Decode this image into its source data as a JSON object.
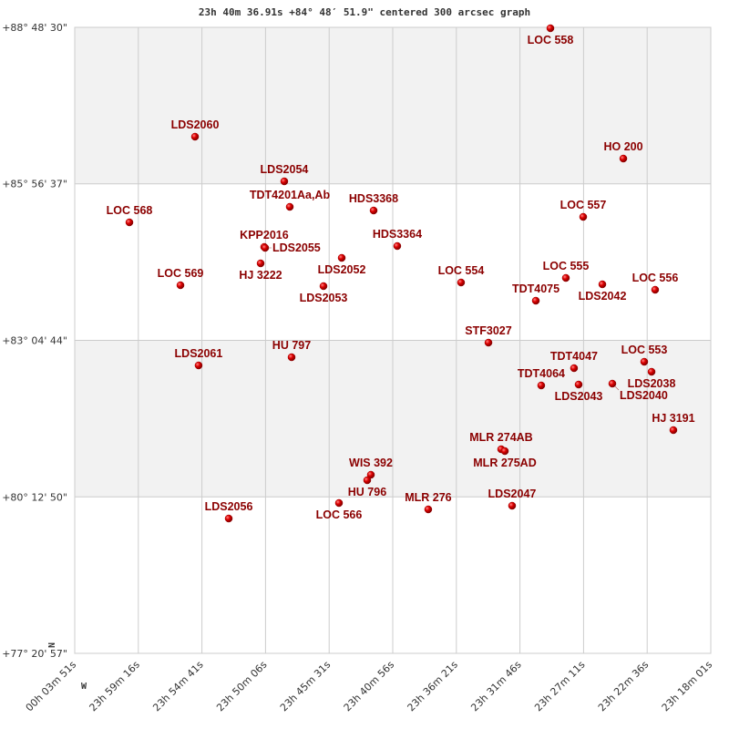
{
  "chart_data": {
    "type": "scatter",
    "title": "23h 40m 36.91s +84° 48′ 51.9\" centered 300 arcsec graph",
    "x_axis": {
      "unit": "RA (hours)",
      "xlim": [
        24.06417,
        23.30028
      ],
      "tick_values": [
        24.06417,
        23.98778,
        23.91139,
        23.835,
        23.75861,
        23.68222,
        23.60583,
        23.52944,
        23.45306,
        23.37667,
        23.30028
      ],
      "tick_labels": [
        "00h 03m 51s",
        "23h 59m 16s",
        "23h 54m 41s",
        "23h 50m 06s",
        "23h 45m 31s",
        "23h 40m 56s",
        "23h 36m 21s",
        "23h 31m 46s",
        "23h 27m 11s",
        "23h 22m 36s",
        "23h 18m 01s"
      ]
    },
    "y_axis": {
      "unit": "Dec (degrees)",
      "ylim": [
        77.34917,
        88.80833
      ],
      "tick_values": [
        88.80833,
        85.94361,
        83.07889,
        80.21389,
        77.34917
      ],
      "tick_labels": [
        "+88° 48' 30\"",
        "+85° 56' 37\"",
        "+83° 04' 44\"",
        "+80° 12' 50\"",
        "+77° 20' 57\""
      ]
    },
    "compass": {
      "north": "N",
      "west": "W"
    },
    "grid": true,
    "band_colors": [
      "#f2f2f2",
      "#ffffff"
    ],
    "point_color": "#dd0000",
    "label_color": "#8b0000",
    "points": [
      {
        "name": "LOC 558",
        "ra": 23.4929,
        "dec": 88.7917
      },
      {
        "name": "LDS2060",
        "ra": 23.9197,
        "dec": 86.8067
      },
      {
        "name": "HO  200",
        "ra": 23.4053,
        "dec": 86.4064
      },
      {
        "name": "LDS2054",
        "ra": 23.8125,
        "dec": 85.9894
      },
      {
        "name": "TDT4201Aa,Ab",
        "ra": 23.8059,
        "dec": 85.5223
      },
      {
        "name": "LOC 568",
        "ra": 23.9985,
        "dec": 85.2388
      },
      {
        "name": "HDS3368",
        "ra": 23.7052,
        "dec": 85.4556
      },
      {
        "name": "LOC 557",
        "ra": 23.4535,
        "dec": 85.3389
      },
      {
        "name": "KPP2016",
        "ra": 23.8366,
        "dec": 84.7884
      },
      {
        "name": "LDS2055",
        "ra": 23.8355,
        "dec": 84.7717
      },
      {
        "name": "HJ 3222",
        "ra": 23.8409,
        "dec": 84.4882
      },
      {
        "name": "LDS2052",
        "ra": 23.7435,
        "dec": 84.5883
      },
      {
        "name": "HDS3364",
        "ra": 23.6768,
        "dec": 84.8051
      },
      {
        "name": "LOC 569",
        "ra": 23.9372,
        "dec": 84.0879
      },
      {
        "name": "LDS2053",
        "ra": 23.7654,
        "dec": 84.0712
      },
      {
        "name": "LOC 554",
        "ra": 23.6002,
        "dec": 84.1379
      },
      {
        "name": "LOC 555",
        "ra": 23.4743,
        "dec": 84.2213
      },
      {
        "name": "LDS2042",
        "ra": 23.4305,
        "dec": 84.1045
      },
      {
        "name": "LOC 556",
        "ra": 23.3671,
        "dec": 84.0045
      },
      {
        "name": "TDT4075",
        "ra": 23.5104,
        "dec": 83.8043
      },
      {
        "name": "STF3027",
        "ra": 23.5673,
        "dec": 83.037
      },
      {
        "name": "LDS2061",
        "ra": 23.9154,
        "dec": 82.62
      },
      {
        "name": "HU  797",
        "ra": 23.8037,
        "dec": 82.7701
      },
      {
        "name": "LOC 553",
        "ra": 23.3802,
        "dec": 82.6867
      },
      {
        "name": "LDS2038",
        "ra": 23.3714,
        "dec": 82.5033
      },
      {
        "name": "TDT4047",
        "ra": 23.4645,
        "dec": 82.57
      },
      {
        "name": "TDT4064",
        "ra": 23.5039,
        "dec": 82.2531
      },
      {
        "name": "LDS2043",
        "ra": 23.459,
        "dec": 82.2697
      },
      {
        "name": "LDS2040",
        "ra": 23.4185,
        "dec": 82.2864
      },
      {
        "name": "HJ 3191",
        "ra": 23.3452,
        "dec": 81.4357
      },
      {
        "name": "MLR 274AB",
        "ra": 23.552,
        "dec": 81.0855
      },
      {
        "name": "MLR 275AD",
        "ra": 23.5476,
        "dec": 81.0521
      },
      {
        "name": "WIS 392",
        "ra": 23.7085,
        "dec": 80.6184
      },
      {
        "name": "HU  796",
        "ra": 23.7129,
        "dec": 80.5183
      },
      {
        "name": "LOC 566",
        "ra": 23.7468,
        "dec": 80.1013
      },
      {
        "name": "MLR 276",
        "ra": 23.6396,
        "dec": 79.9846
      },
      {
        "name": "LDS2047",
        "ra": 23.5389,
        "dec": 80.0513
      },
      {
        "name": "LDS2056",
        "ra": 23.8792,
        "dec": 79.8178
      }
    ]
  }
}
